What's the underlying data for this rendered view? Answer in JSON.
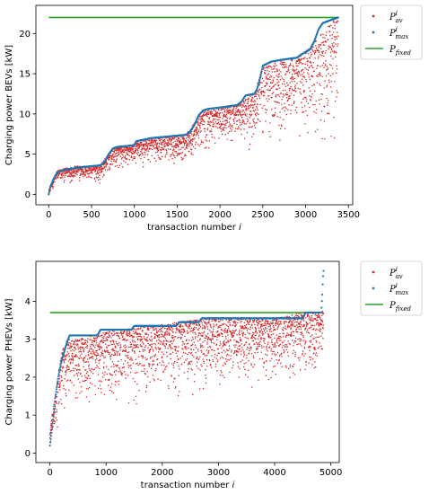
{
  "chart_data": [
    {
      "type": "scatter",
      "xlabel": "transaction number",
      "xlabel_var": "i",
      "ylabel": "Charging power BEVs [kW]",
      "xlim": [
        -150,
        3550
      ],
      "ylim": [
        -1.3,
        23.5
      ],
      "xticks": [
        0,
        500,
        1000,
        1500,
        2000,
        2500,
        3000,
        3500
      ],
      "yticks": [
        0,
        5,
        10,
        15,
        20
      ],
      "grid": false,
      "legend_position": "outside-right",
      "legend": [
        {
          "base": "P",
          "sup": "i",
          "sub": "av",
          "style": "dot",
          "color": "#d62728"
        },
        {
          "base": "P",
          "sup": "i",
          "sub": "max",
          "style": "dot",
          "color": "#1f77b4"
        },
        {
          "base": "P",
          "sub": "fixed",
          "style": "line",
          "color": "#2ca02c"
        }
      ],
      "series": [
        {
          "name": "P_fixed",
          "color": "#2ca02c",
          "x": [
            0,
            3380
          ],
          "y": [
            22,
            22
          ]
        },
        {
          "name": "P_max",
          "color": "#1f77b4",
          "x": [
            0,
            20,
            60,
            100,
            200,
            400,
            500,
            600,
            650,
            700,
            750,
            800,
            900,
            1000,
            1020,
            1200,
            1400,
            1600,
            1650,
            1700,
            1750,
            1800,
            1850,
            2000,
            2200,
            2250,
            2280,
            2300,
            2400,
            2430,
            2470,
            2500,
            2600,
            2700,
            2900,
            2950,
            3050,
            3100,
            3150,
            3200,
            3300,
            3380
          ],
          "y": [
            0,
            1.0,
            2.0,
            2.7,
            3.1,
            3.4,
            3.5,
            3.6,
            4.0,
            5.0,
            5.7,
            5.9,
            6.0,
            6.1,
            6.6,
            7.0,
            7.2,
            7.4,
            7.8,
            8.6,
            9.8,
            10.4,
            10.6,
            10.8,
            11.1,
            11.5,
            12.0,
            12.3,
            12.5,
            13.0,
            14.5,
            16.0,
            16.5,
            16.7,
            17.0,
            17.4,
            18.0,
            19.0,
            20.5,
            21.3,
            21.7,
            22.0
          ]
        },
        {
          "name": "P_av",
          "color": "#d62728",
          "envelope": {
            "x": [
              0,
              100,
              300,
              600,
              750,
              900,
              1200,
              1600,
              1800,
              2000,
              2200,
              2400,
              2500,
              2700,
              2900,
              3100,
              3300,
              3380
            ],
            "low": [
              0,
              1.2,
              1.3,
              1.3,
              2.5,
              2.8,
              3.5,
              3.5,
              4.5,
              5.5,
              6.0,
              4.5,
              5.0,
              6.0,
              5.0,
              4.0,
              4.0,
              4.5
            ],
            "high": [
              0.5,
              3.0,
              3.5,
              3.6,
              5.8,
              6.0,
              7.0,
              7.4,
              10.4,
              10.8,
              11.1,
              12.5,
              16.0,
              16.5,
              17.0,
              19.0,
              21.5,
              22.0
            ]
          },
          "points": 2200
        }
      ]
    },
    {
      "type": "scatter",
      "xlabel": "transaction number",
      "xlabel_var": "i",
      "ylabel": "Charging power PHEVs [kW]",
      "xlim": [
        -250,
        5150
      ],
      "ylim": [
        -0.25,
        5.05
      ],
      "xticks": [
        0,
        1000,
        2000,
        3000,
        4000,
        5000
      ],
      "yticks": [
        0,
        1,
        2,
        3,
        4
      ],
      "grid": false,
      "legend_position": "outside-right",
      "legend": [
        {
          "base": "P",
          "sup": "i",
          "sub": "av",
          "style": "dot",
          "color": "#d62728"
        },
        {
          "base": "P",
          "sup": "i",
          "sub": "max",
          "style": "dot",
          "color": "#1f77b4"
        },
        {
          "base": "P",
          "sub": "fixed",
          "style": "line",
          "color": "#2ca02c"
        }
      ],
      "series": [
        {
          "name": "P_fixed",
          "color": "#2ca02c",
          "x": [
            0,
            4870
          ],
          "y": [
            3.7,
            3.7
          ]
        },
        {
          "name": "P_max",
          "color": "#1f77b4",
          "x": [
            0,
            50,
            100,
            150,
            200,
            300,
            350,
            400,
            850,
            900,
            1450,
            1500,
            2250,
            2300,
            2650,
            2700,
            4500,
            4550,
            4830,
            4850,
            4860,
            4870
          ],
          "y": [
            0.2,
            0.8,
            1.5,
            2.0,
            2.4,
            2.9,
            3.1,
            3.1,
            3.1,
            3.25,
            3.25,
            3.35,
            3.35,
            3.45,
            3.45,
            3.55,
            3.55,
            3.7,
            3.7,
            4.2,
            4.6,
            4.8
          ]
        },
        {
          "name": "P_av",
          "color": "#d62728",
          "envelope": {
            "x": [
              0,
              100,
              200,
              300,
              500,
              1000,
              1500,
              2000,
              2500,
              3000,
              3500,
              4000,
              4500,
              4870
            ],
            "low": [
              0,
              0.3,
              1.0,
              1.0,
              1.1,
              1.2,
              1.2,
              1.3,
              1.3,
              1.4,
              1.5,
              1.5,
              1.7,
              1.9
            ],
            "high": [
              0.6,
              1.6,
              2.6,
              3.0,
              3.0,
              3.2,
              3.3,
              3.4,
              3.5,
              3.55,
              3.55,
              3.55,
              3.7,
              3.75
            ]
          },
          "points": 2400
        }
      ]
    }
  ]
}
